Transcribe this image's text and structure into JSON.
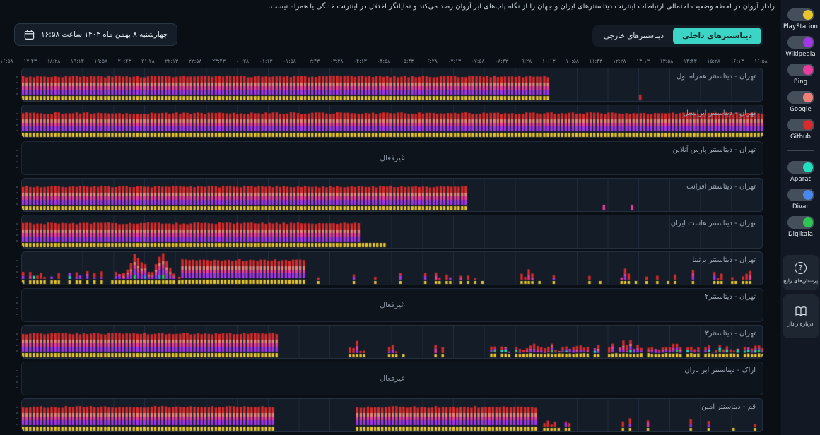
{
  "page": {
    "description": "رادار آروان در لحظه وضعیت احتمالی ارتباطات اینترنت دیتاسنترهای ایران و جهان را از نگاه پاپ‌های ابر آروان رصد می‌کند و نمایانگر اختلال در اینترنت خانگی یا همراه نیست."
  },
  "header": {
    "date_label": "چهارشنبه ۸ بهمن ماه ۱۴۰۴ ساعت ۱۶:۵۸",
    "tabs": [
      {
        "label": "دیتاسنترهای داخلی",
        "active": true
      },
      {
        "label": "دیتاسنترهای خارجی",
        "active": false
      }
    ]
  },
  "sidebar": {
    "faq_label": "پرسش‌های رایج",
    "about_label": "درباره رادار"
  },
  "chart_data": {
    "type": "bar",
    "subtype": "status-timeline",
    "direction": "rtl",
    "inactive_label": "غیرفعال",
    "time_labels": [
      "۱۶:۵۸",
      "۱۷:۴۳",
      "۱۸:۲۸",
      "۱۹:۱۳",
      "۱۹:۵۸",
      "۲۰:۴۳",
      "۲۱:۲۸",
      "۲۲:۱۳",
      "۲۲:۵۸",
      "۲۳:۴۳",
      "۰۰:۲۸",
      "۰۱:۱۳",
      "۰۱:۵۸",
      "۰۲:۴۳",
      "۰۳:۲۸",
      "۰۴:۱۳",
      "۰۴:۵۸",
      "۰۵:۴۳",
      "۰۶:۲۸",
      "۰۷:۱۳",
      "۰۷:۵۸",
      "۰۸:۴۳",
      "۰۹:۲۸",
      "۱۰:۱۳",
      "۱۰:۵۸",
      "۱۱:۴۳",
      "۱۲:۲۸",
      "۱۳:۱۳",
      "۱۳:۵۸",
      "۱۴:۴۳",
      "۱۵:۲۸",
      "۱۶:۱۳",
      "۱۶:۵۸"
    ],
    "services": [
      {
        "name": "playstation",
        "label": "PlayStation",
        "color": "#e8c52b",
        "group": 1,
        "on": true
      },
      {
        "name": "wikipedia",
        "label": "Wikipedia",
        "color": "#a236e8",
        "group": 1,
        "on": true
      },
      {
        "name": "bing",
        "label": "Bing",
        "color": "#ea3c9e",
        "group": 1,
        "on": true
      },
      {
        "name": "google",
        "label": "Google",
        "color": "#ef8077",
        "group": 1,
        "on": true
      },
      {
        "name": "github",
        "label": "Github",
        "color": "#d92b2b",
        "group": 1,
        "on": true
      },
      {
        "name": "aparat",
        "label": "Aparat",
        "color": "#1fe0bf",
        "group": 2,
        "on": true
      },
      {
        "name": "divar",
        "label": "Divar",
        "color": "#4886f0",
        "group": 2,
        "on": true
      },
      {
        "name": "digikala",
        "label": "Digikala",
        "color": "#2ec653",
        "group": 2,
        "on": true
      }
    ],
    "rows": [
      {
        "label": "تهران - دیتاسنتر همراه اول",
        "status": "active",
        "segments": [
          {
            "from": 0,
            "to": 0.71,
            "pattern": "dense"
          },
          {
            "from": 0.833,
            "to": 0.836,
            "pattern": "tick",
            "service": "github"
          }
        ]
      },
      {
        "label": "تهران - دیتاسنتر ایرانسل",
        "status": "active",
        "segments": [
          {
            "from": 0,
            "to": 1,
            "pattern": "dense"
          }
        ]
      },
      {
        "label": "تهران - دیتاسنتر پارس آنلاین",
        "status": "inactive",
        "segments": []
      },
      {
        "label": "تهران - دیتاسنتر افرانت",
        "status": "active",
        "segments": [
          {
            "from": 0,
            "to": 0.6,
            "pattern": "dense"
          },
          {
            "from": 0.784,
            "to": 0.787,
            "pattern": "tick",
            "service": "bing"
          },
          {
            "from": 0.822,
            "to": 0.825,
            "pattern": "tick",
            "service": "bing"
          }
        ]
      },
      {
        "label": "تهران - دیتاسنتر هاست ایران",
        "status": "active",
        "segments": [
          {
            "from": 0,
            "to": 0.454,
            "pattern": "dense"
          },
          {
            "from": 0.454,
            "to": 0.49,
            "pattern": "single",
            "service": "playstation"
          }
        ]
      },
      {
        "label": "تهران - دیتاسنتر برتینا",
        "status": "active",
        "segments": [
          {
            "from": 0,
            "to": 0.136,
            "pattern": "sparse"
          },
          {
            "from": 0.136,
            "to": 0.206,
            "pattern": "mountains"
          },
          {
            "from": 0.206,
            "to": 0.215,
            "pattern": "sparse"
          },
          {
            "from": 0.215,
            "to": 0.379,
            "pattern": "dense"
          },
          {
            "from": 0.379,
            "to": 1,
            "pattern": "scatter"
          }
        ]
      },
      {
        "label": "تهران - دیتاسنتر۲",
        "status": "inactive",
        "segments": []
      },
      {
        "label": "تهران - دیتاسنتر۳",
        "status": "active",
        "segments": [
          {
            "from": 0,
            "to": 0.346,
            "pattern": "dense"
          },
          {
            "from": 0.417,
            "to": 0.58,
            "pattern": "scatter"
          },
          {
            "from": 0.632,
            "to": 1,
            "pattern": "varied"
          }
        ]
      },
      {
        "label": "اراک - دیتاسنتر ابر باران",
        "status": "inactive",
        "segments": []
      },
      {
        "label": "قم - دیتاسنتر امین",
        "status": "active",
        "segments": [
          {
            "from": 0,
            "to": 0.341,
            "pattern": "dense"
          },
          {
            "from": 0.451,
            "to": 0.694,
            "pattern": "dense"
          },
          {
            "from": 0.694,
            "to": 1,
            "pattern": "scatter"
          }
        ]
      }
    ]
  }
}
